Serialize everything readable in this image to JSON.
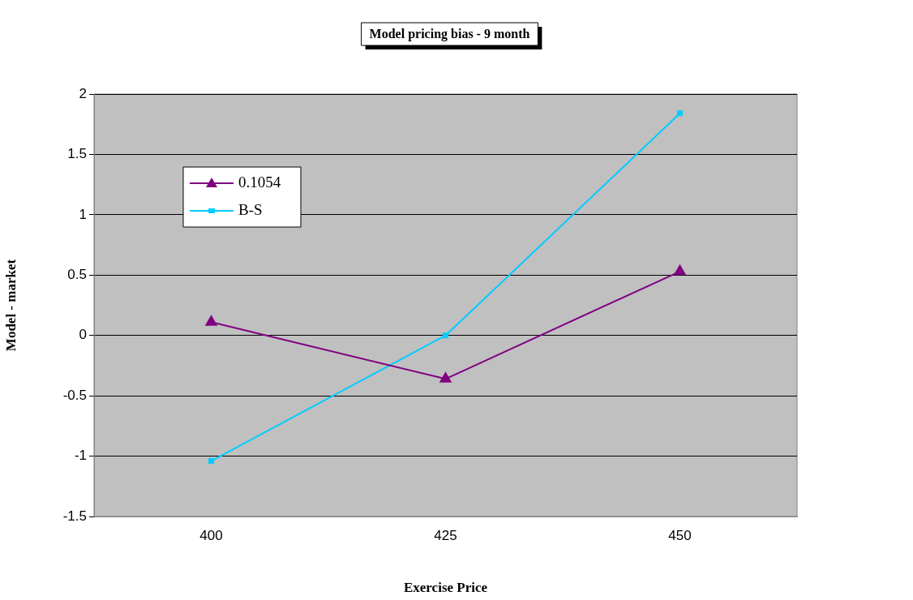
{
  "chart_data": {
    "type": "line",
    "title": "Model pricing bias - 9 month",
    "xlabel": "Exercise Price",
    "ylabel": "Model - market",
    "categories": [
      "400",
      "425",
      "450"
    ],
    "series": [
      {
        "name": "0.1054",
        "color": "#800080",
        "marker": "triangle",
        "values": [
          0.11,
          -0.36,
          0.53
        ]
      },
      {
        "name": "B-S",
        "color": "#00ccff",
        "marker": "square",
        "values": [
          -1.04,
          0,
          1.84
        ]
      }
    ],
    "ylim": [
      -1.5,
      2
    ],
    "yticks": [
      -1.5,
      -1,
      -0.5,
      0,
      0.5,
      1,
      1.5,
      2
    ],
    "grid": "y",
    "legend": "top left"
  }
}
